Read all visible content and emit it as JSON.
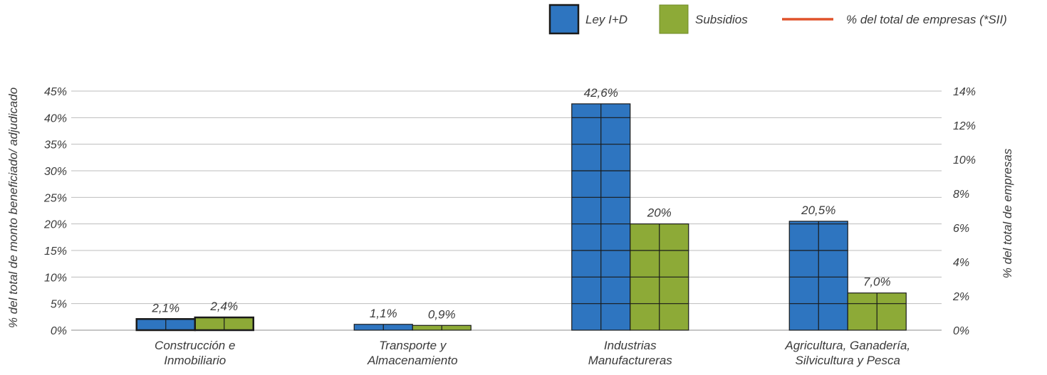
{
  "chart_data": {
    "type": "bar",
    "categories": [
      [
        "Construcción e",
        "Inmobiliario"
      ],
      [
        "Transporte y",
        "Almacenamiento"
      ],
      [
        "Industrias",
        "Manufactureras"
      ],
      [
        "Agricultura, Ganadería,",
        "Silvicultura y Pesca"
      ]
    ],
    "series": [
      {
        "name": "Ley I+D",
        "values": [
          2.1,
          1.1,
          42.6,
          20.5
        ],
        "labels": [
          "2,1%",
          "1,1%",
          "42,6%",
          "20,5%"
        ],
        "color": "#2E75C0"
      },
      {
        "name": "Subsidios",
        "values": [
          2.4,
          0.9,
          20,
          7.0
        ],
        "labels": [
          "2,4%",
          "0,9%",
          "20%",
          "7,0%"
        ],
        "color": "#8DAA37"
      }
    ],
    "line_series": {
      "name": "% del total de empresas (*SII)",
      "color": "#E0522B",
      "values": []
    },
    "ylabel": "% del total de monto beneficiado/ adjudicado",
    "ylim": [
      0,
      45
    ],
    "yticks": [
      "0%",
      "5%",
      "10%",
      "15%",
      "20%",
      "25%",
      "30%",
      "35%",
      "40%",
      "45%"
    ],
    "y2label": "% del total de empresas",
    "y2lim": [
      0,
      14
    ],
    "y2ticks": [
      "0%",
      "2%",
      "4%",
      "6%",
      "8%",
      "10%",
      "12%",
      "14%"
    ],
    "grid": true,
    "legend": "top-right"
  }
}
